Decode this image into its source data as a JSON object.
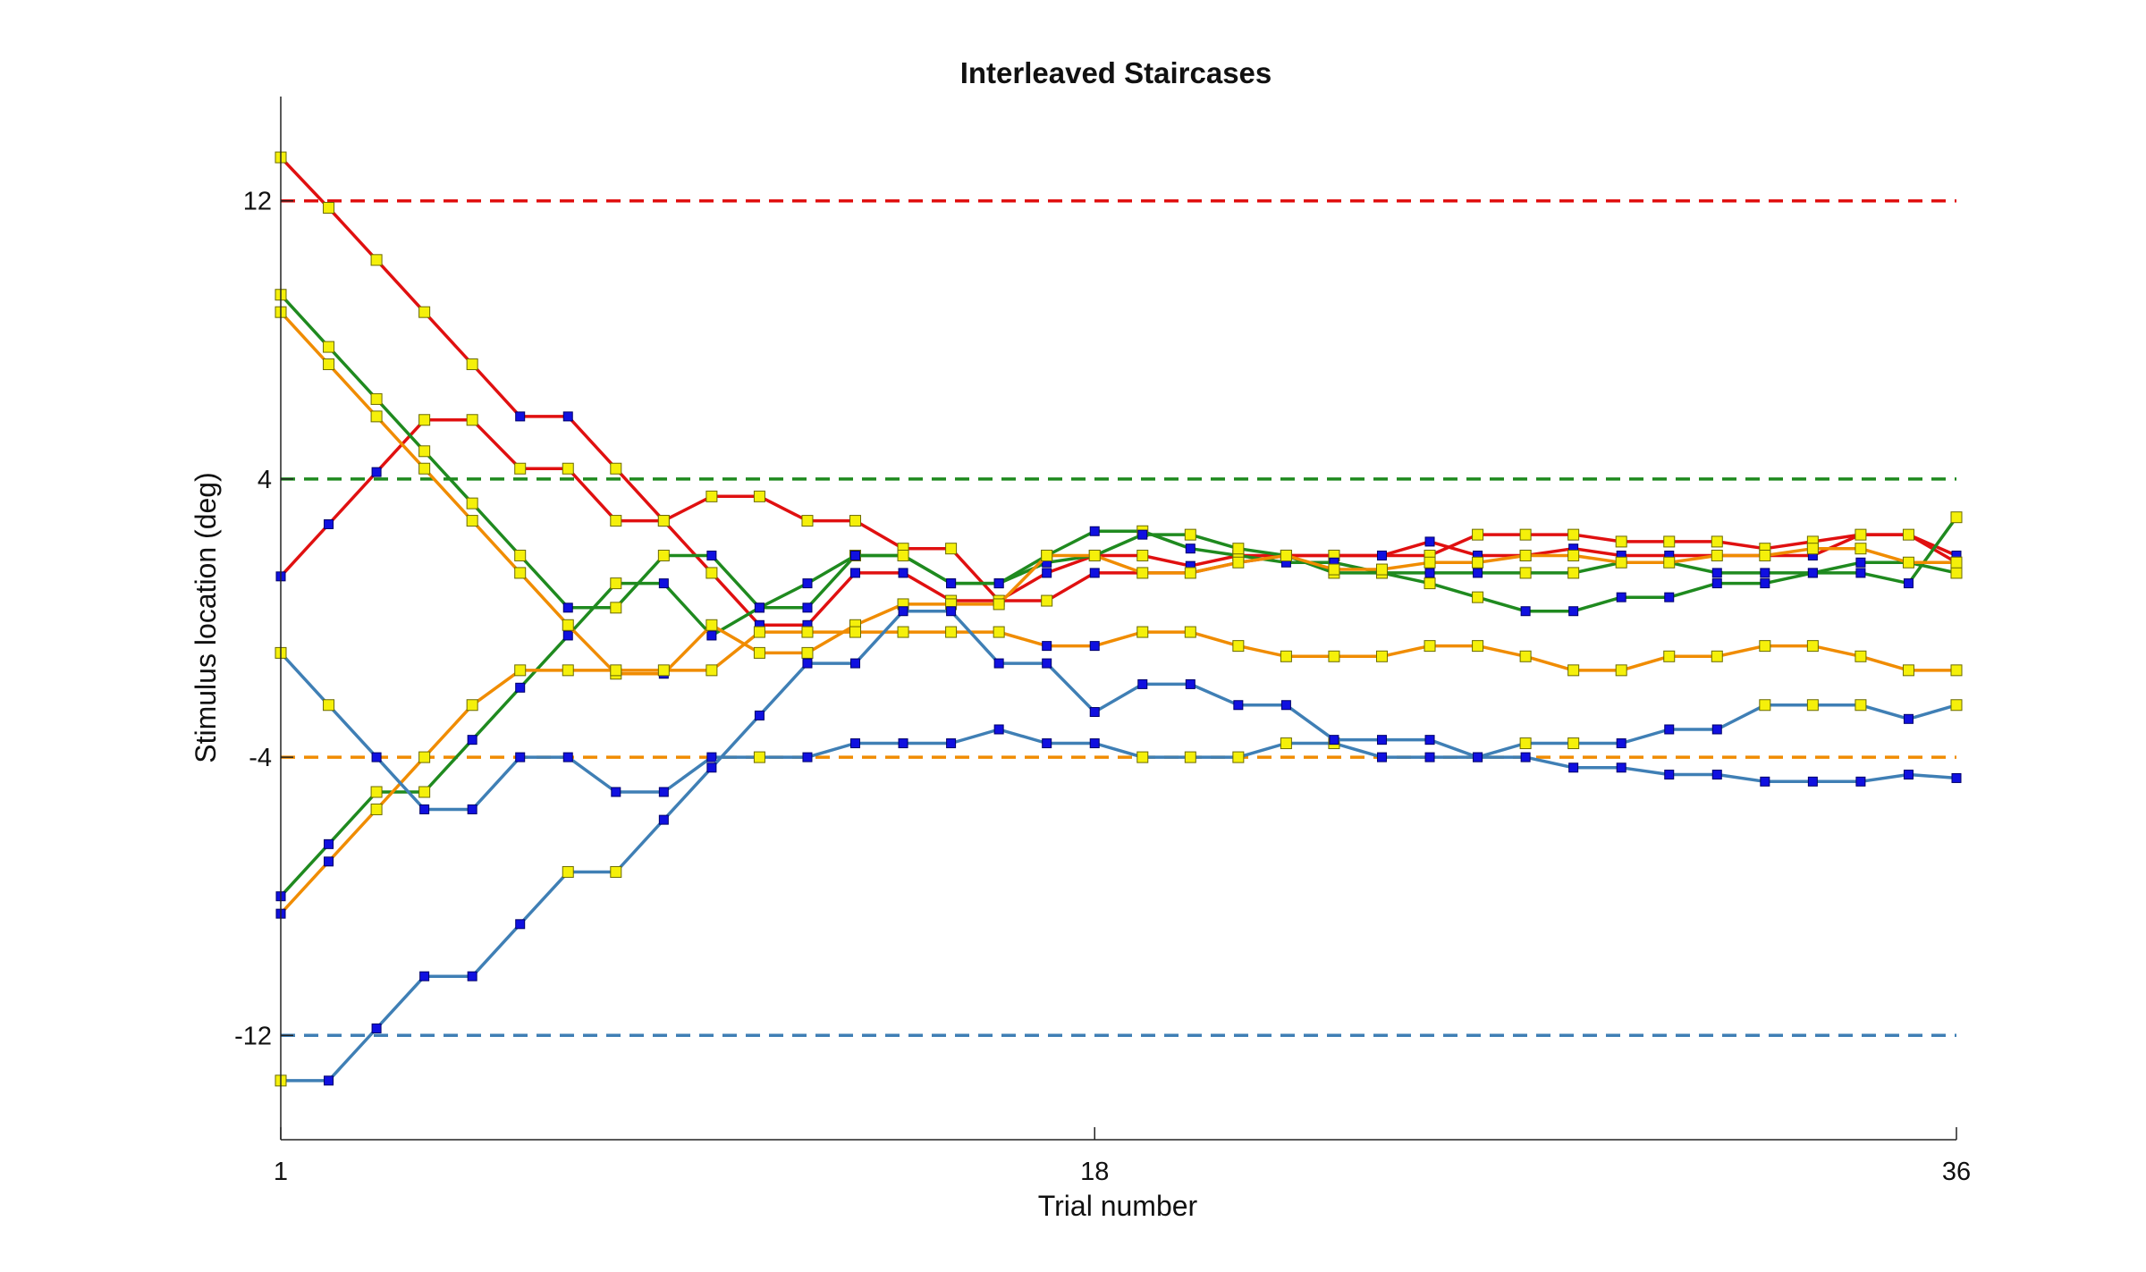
{
  "chart_data": {
    "type": "line",
    "title": "Interleaved Staircases",
    "xlabel": "Trial number",
    "ylabel": "Stimulus location (deg)",
    "xlim": [
      1,
      36
    ],
    "ylim": [
      -15,
      15
    ],
    "xticks": [
      1,
      18,
      36
    ],
    "yticks": [
      -12,
      -4,
      4,
      12
    ],
    "grid": false,
    "legend": "none",
    "reference_lines": [
      {
        "y": 12,
        "color": "#e01010"
      },
      {
        "y": 4,
        "color": "#1f8a1f"
      },
      {
        "y": -4,
        "color": "#f08c00"
      },
      {
        "y": -12,
        "color": "#3f7fb5"
      }
    ],
    "marker_colors": {
      "yellow": "#f5f00a",
      "blue": "#1010e0"
    },
    "series": [
      {
        "color": "#e01010",
        "x": [
          1,
          2,
          3,
          4,
          5,
          6,
          7,
          8,
          9,
          10,
          11,
          12,
          13,
          14,
          15,
          16,
          17,
          18,
          19,
          20,
          21,
          22,
          23,
          24,
          25,
          26,
          27,
          28,
          29,
          30,
          31,
          32,
          33,
          34,
          35,
          36
        ],
        "y": [
          13.25,
          11.8,
          10.3,
          8.8,
          7.3,
          5.8,
          5.8,
          4.3,
          2.8,
          1.3,
          -0.2,
          -0.2,
          1.3,
          1.3,
          0.5,
          0.5,
          1.3,
          1.8,
          1.8,
          1.5,
          1.8,
          1.8,
          1.8,
          1.8,
          2.2,
          1.8,
          1.8,
          2.0,
          1.8,
          1.8,
          1.8,
          1.8,
          1.8,
          2.4,
          2.4,
          1.8
        ],
        "markers": [
          "y",
          "y",
          "y",
          "y",
          "y",
          "b",
          "b",
          "y",
          "y",
          "y",
          "b",
          "b",
          "b",
          "b",
          "y",
          "b",
          "b",
          "y",
          "y",
          "b",
          "y",
          "y",
          "y",
          "b",
          "b",
          "b",
          "y",
          "b",
          "b",
          "b",
          "b",
          "b",
          "b",
          "b",
          "b",
          "b"
        ]
      },
      {
        "color": "#e01010",
        "x": [
          1,
          2,
          3,
          4,
          5,
          6,
          7,
          8,
          9,
          10,
          11,
          12,
          13,
          14,
          15,
          16,
          17,
          18,
          19,
          20,
          21,
          22,
          23,
          24,
          25,
          26,
          27,
          28,
          29,
          30,
          31,
          32,
          33,
          34,
          35,
          36
        ],
        "y": [
          1.2,
          2.7,
          4.2,
          5.7,
          5.7,
          4.3,
          4.3,
          2.8,
          2.8,
          3.5,
          3.5,
          2.8,
          2.8,
          2.0,
          2.0,
          0.5,
          0.5,
          1.3,
          1.3,
          1.3,
          1.6,
          1.8,
          1.8,
          1.8,
          1.8,
          2.4,
          2.4,
          2.4,
          2.2,
          2.2,
          2.2,
          2.0,
          2.2,
          2.4,
          2.4,
          1.6
        ],
        "markers": [
          "b",
          "b",
          "b",
          "y",
          "y",
          "y",
          "y",
          "y",
          "y",
          "y",
          "y",
          "y",
          "y",
          "y",
          "y",
          "y",
          "y",
          "b",
          "b",
          "b",
          "b",
          "b",
          "y",
          "b",
          "y",
          "y",
          "y",
          "y",
          "y",
          "y",
          "y",
          "y",
          "y",
          "y",
          "y",
          "y"
        ]
      },
      {
        "color": "#1f8a1f",
        "x": [
          1,
          2,
          3,
          4,
          5,
          6,
          7,
          8,
          9,
          10,
          11,
          12,
          13,
          14,
          15,
          16,
          17,
          18,
          19,
          20,
          21,
          22,
          23,
          24,
          25,
          26,
          27,
          28,
          29,
          30,
          31,
          32,
          33,
          34,
          35,
          36
        ],
        "y": [
          9.3,
          7.8,
          6.3,
          4.8,
          3.3,
          1.8,
          0.3,
          0.3,
          1.8,
          1.8,
          0.3,
          0.3,
          1.8,
          1.8,
          1.0,
          1.0,
          1.8,
          2.5,
          2.5,
          2.0,
          1.8,
          1.6,
          1.6,
          1.3,
          1.3,
          1.3,
          1.3,
          1.3,
          1.6,
          1.6,
          1.3,
          1.3,
          1.3,
          1.6,
          1.6,
          1.3
        ],
        "markers": [
          "y",
          "y",
          "y",
          "y",
          "y",
          "y",
          "b",
          "y",
          "y",
          "b",
          "b",
          "b",
          "y",
          "b",
          "b",
          "b",
          "y",
          "b",
          "y",
          "b",
          "y",
          "b",
          "b",
          "y",
          "b",
          "b",
          "y",
          "y",
          "b",
          "b",
          "b",
          "b",
          "b",
          "b",
          "b",
          "y"
        ]
      },
      {
        "color": "#1f8a1f",
        "x": [
          1,
          2,
          3,
          4,
          5,
          6,
          7,
          8,
          9,
          10,
          11,
          12,
          13,
          14,
          15,
          16,
          17,
          18,
          19,
          20,
          21,
          22,
          23,
          24,
          25,
          26,
          27,
          28,
          29,
          30,
          31,
          32,
          33,
          34,
          35,
          36
        ],
        "y": [
          -8.0,
          -6.5,
          -5.0,
          -5.0,
          -3.5,
          -2.0,
          -0.5,
          1.0,
          1.0,
          -0.5,
          0.3,
          1.0,
          1.8,
          1.8,
          1.0,
          1.0,
          1.6,
          1.8,
          2.4,
          2.4,
          2.0,
          1.8,
          1.3,
          1.3,
          1.0,
          0.6,
          0.2,
          0.2,
          0.6,
          0.6,
          1.0,
          1.0,
          1.3,
          1.3,
          1.0,
          2.9
        ],
        "markers": [
          "b",
          "b",
          "y",
          "y",
          "b",
          "b",
          "b",
          "y",
          "b",
          "b",
          "b",
          "b",
          "b",
          "y",
          "b",
          "b",
          "b",
          "b",
          "b",
          "y",
          "y",
          "y",
          "y",
          "y",
          "y",
          "y",
          "b",
          "b",
          "b",
          "b",
          "b",
          "b",
          "b",
          "b",
          "b",
          "y"
        ]
      },
      {
        "color": "#f08c00",
        "x": [
          1,
          2,
          3,
          4,
          5,
          6,
          7,
          8,
          9,
          10,
          11,
          12,
          13,
          14,
          15,
          16,
          17,
          18,
          19,
          20,
          21,
          22,
          23,
          24,
          25,
          26,
          27,
          28,
          29,
          30,
          31,
          32,
          33,
          34,
          35,
          36
        ],
        "y": [
          8.8,
          7.3,
          5.8,
          4.3,
          2.8,
          1.3,
          -0.2,
          -1.6,
          -1.6,
          -0.2,
          -1.0,
          -1.0,
          -0.2,
          0.4,
          0.4,
          0.4,
          1.8,
          1.8,
          1.3,
          1.3,
          1.6,
          1.8,
          1.4,
          1.4,
          1.6,
          1.6,
          1.8,
          1.8,
          1.6,
          1.6,
          1.8,
          1.8,
          2.0,
          2.0,
          1.6,
          1.6
        ],
        "markers": [
          "y",
          "y",
          "y",
          "y",
          "y",
          "y",
          "y",
          "y",
          "b",
          "y",
          "y",
          "y",
          "y",
          "y",
          "y",
          "y",
          "y",
          "y",
          "y",
          "y",
          "y",
          "y",
          "y",
          "y",
          "y",
          "y",
          "y",
          "y",
          "y",
          "y",
          "y",
          "y",
          "y",
          "y",
          "y",
          "y"
        ]
      },
      {
        "color": "#f08c00",
        "x": [
          1,
          2,
          3,
          4,
          5,
          6,
          7,
          8,
          9,
          10,
          11,
          12,
          13,
          14,
          15,
          16,
          17,
          18,
          19,
          20,
          21,
          22,
          23,
          24,
          25,
          26,
          27,
          28,
          29,
          30,
          31,
          32,
          33,
          34,
          35,
          36
        ],
        "y": [
          -8.5,
          -7.0,
          -5.5,
          -4.0,
          -2.5,
          -1.5,
          -1.5,
          -1.5,
          -1.5,
          -1.5,
          -0.4,
          -0.4,
          -0.4,
          -0.4,
          -0.4,
          -0.4,
          -0.8,
          -0.8,
          -0.4,
          -0.4,
          -0.8,
          -1.1,
          -1.1,
          -1.1,
          -0.8,
          -0.8,
          -1.1,
          -1.5,
          -1.5,
          -1.1,
          -1.1,
          -0.8,
          -0.8,
          -1.1,
          -1.5,
          -1.5
        ],
        "markers": [
          "b",
          "b",
          "y",
          "y",
          "y",
          "y",
          "y",
          "y",
          "y",
          "y",
          "y",
          "y",
          "y",
          "y",
          "y",
          "y",
          "b",
          "b",
          "y",
          "y",
          "y",
          "y",
          "y",
          "y",
          "y",
          "y",
          "y",
          "y",
          "y",
          "y",
          "y",
          "y",
          "y",
          "y",
          "y",
          "y"
        ]
      },
      {
        "color": "#3f7fb5",
        "x": [
          1,
          2,
          3,
          4,
          5,
          6,
          7,
          8,
          9,
          10,
          11,
          12,
          13,
          14,
          15,
          16,
          17,
          18,
          19,
          20,
          21,
          22,
          23,
          24,
          25,
          26,
          27,
          28,
          29,
          30,
          31,
          32,
          33,
          34,
          35,
          36
        ],
        "y": [
          -1.0,
          -2.5,
          -4.0,
          -5.5,
          -5.5,
          -4.0,
          -4.0,
          -5.0,
          -5.0,
          -4.0,
          -4.0,
          -4.0,
          -3.6,
          -3.6,
          -3.6,
          -3.2,
          -3.6,
          -3.6,
          -4.0,
          -4.0,
          -4.0,
          -3.6,
          -3.6,
          -4.0,
          -4.0,
          -4.0,
          -3.6,
          -3.6,
          -3.6,
          -3.2,
          -3.2,
          -2.5,
          -2.5,
          -2.5,
          -2.9,
          -2.5
        ],
        "markers": [
          "y",
          "y",
          "b",
          "b",
          "b",
          "b",
          "b",
          "b",
          "b",
          "b",
          "y",
          "b",
          "b",
          "b",
          "b",
          "b",
          "b",
          "b",
          "y",
          "y",
          "y",
          "y",
          "y",
          "b",
          "b",
          "b",
          "y",
          "y",
          "b",
          "b",
          "b",
          "y",
          "y",
          "y",
          "b",
          "y"
        ]
      },
      {
        "color": "#3f7fb5",
        "x": [
          1,
          2,
          3,
          4,
          5,
          6,
          7,
          8,
          9,
          10,
          11,
          12,
          13,
          14,
          15,
          16,
          17,
          18,
          19,
          20,
          21,
          22,
          23,
          24,
          25,
          26,
          27,
          28,
          29,
          30,
          31,
          32,
          33,
          34,
          35,
          36
        ],
        "y": [
          -13.3,
          -13.3,
          -11.8,
          -10.3,
          -10.3,
          -8.8,
          -7.3,
          -7.3,
          -5.8,
          -4.3,
          -2.8,
          -1.3,
          -1.3,
          0.2,
          0.2,
          -1.3,
          -1.3,
          -2.7,
          -1.9,
          -1.9,
          -2.5,
          -2.5,
          -3.5,
          -3.5,
          -3.5,
          -4.0,
          -4.0,
          -4.3,
          -4.3,
          -4.5,
          -4.5,
          -4.7,
          -4.7,
          -4.7,
          -4.5,
          -4.6
        ],
        "markers": [
          "y",
          "b",
          "b",
          "b",
          "b",
          "b",
          "y",
          "y",
          "b",
          "b",
          "b",
          "b",
          "b",
          "b",
          "b",
          "b",
          "b",
          "b",
          "b",
          "b",
          "b",
          "b",
          "b",
          "b",
          "b",
          "b",
          "b",
          "b",
          "b",
          "b",
          "b",
          "b",
          "b",
          "b",
          "b",
          "b"
        ]
      }
    ]
  }
}
